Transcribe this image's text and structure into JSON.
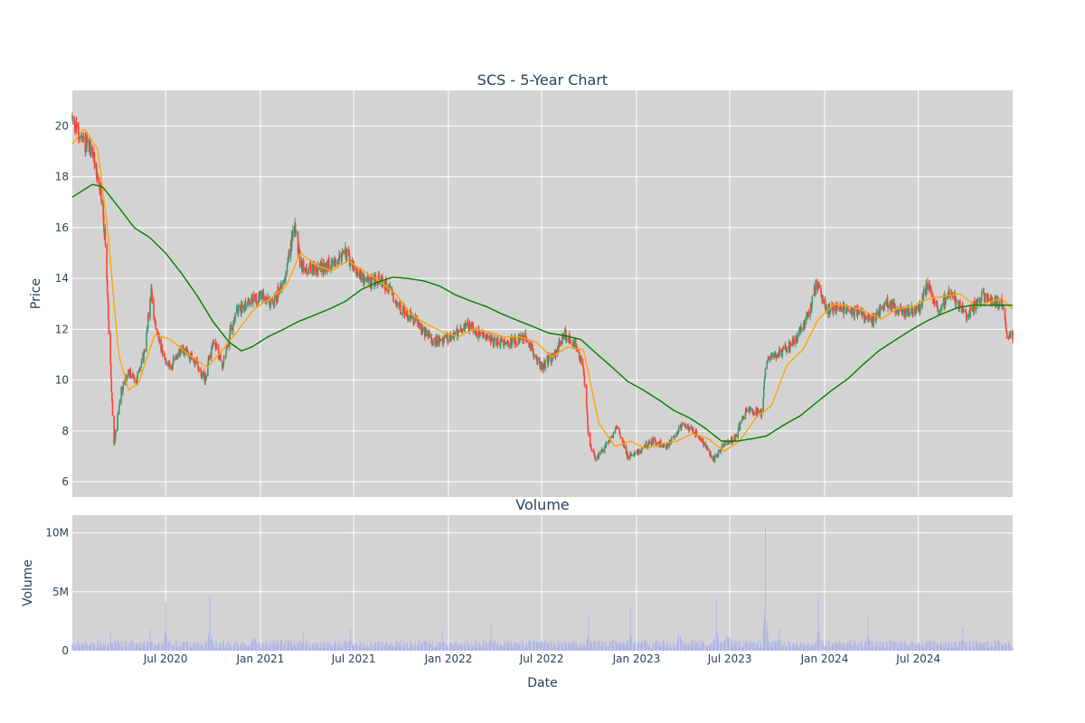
{
  "chart_data": [
    {
      "type": "candlestick",
      "title": "SCS - 5-Year Chart",
      "xlabel": "",
      "ylabel": "Price",
      "ylim": [
        5.4,
        21.4
      ],
      "xlim": [
        "2020-01-02",
        "2024-12-31"
      ],
      "grid": true,
      "yticks": [
        6,
        8,
        10,
        12,
        14,
        16,
        18,
        20
      ],
      "colors": {
        "up": "#3d9970",
        "down": "#ff4136",
        "ma_short": "#ffa500",
        "ma_long": "#008000",
        "plot_bg": "#d3d3d3",
        "grid": "#ffffff"
      },
      "price_path": [
        [
          "2020-01-02",
          20.3
        ],
        [
          "2020-01-20",
          19.4
        ],
        [
          "2020-02-10",
          19.0
        ],
        [
          "2020-02-25",
          17.5
        ],
        [
          "2020-03-05",
          15.8
        ],
        [
          "2020-03-12",
          12.5
        ],
        [
          "2020-03-18",
          9.5
        ],
        [
          "2020-03-23",
          7.5
        ],
        [
          "2020-04-05",
          9.5
        ],
        [
          "2020-04-20",
          10.3
        ],
        [
          "2020-05-05",
          10.0
        ],
        [
          "2020-05-20",
          11.0
        ],
        [
          "2020-06-03",
          13.5
        ],
        [
          "2020-06-12",
          12.0
        ],
        [
          "2020-06-25",
          11.0
        ],
        [
          "2020-07-10",
          10.5
        ],
        [
          "2020-08-01",
          11.2
        ],
        [
          "2020-08-25",
          10.8
        ],
        [
          "2020-09-15",
          10.0
        ],
        [
          "2020-10-01",
          11.6
        ],
        [
          "2020-10-20",
          10.6
        ],
        [
          "2020-11-10",
          12.5
        ],
        [
          "2020-12-01",
          13.0
        ],
        [
          "2021-01-01",
          13.3
        ],
        [
          "2021-01-25",
          13.0
        ],
        [
          "2021-02-20",
          14.2
        ],
        [
          "2021-03-08",
          16.2
        ],
        [
          "2021-03-20",
          14.5
        ],
        [
          "2021-04-15",
          14.3
        ],
        [
          "2021-05-10",
          14.5
        ],
        [
          "2021-06-15",
          15.0
        ],
        [
          "2021-07-01",
          14.5
        ],
        [
          "2021-07-25",
          13.8
        ],
        [
          "2021-08-20",
          14.0
        ],
        [
          "2021-09-10",
          13.5
        ],
        [
          "2021-10-01",
          12.8
        ],
        [
          "2021-11-01",
          12.3
        ],
        [
          "2021-12-01",
          11.5
        ],
        [
          "2022-01-10",
          11.7
        ],
        [
          "2022-02-01",
          12.2
        ],
        [
          "2022-03-01",
          11.8
        ],
        [
          "2022-04-01",
          11.5
        ],
        [
          "2022-05-01",
          11.5
        ],
        [
          "2022-06-01",
          11.7
        ],
        [
          "2022-07-01",
          10.5
        ],
        [
          "2022-07-25",
          11.0
        ],
        [
          "2022-08-15",
          11.8
        ],
        [
          "2022-09-01",
          11.5
        ],
        [
          "2022-09-20",
          10.5
        ],
        [
          "2022-10-01",
          7.5
        ],
        [
          "2022-10-15",
          6.9
        ],
        [
          "2022-11-05",
          7.5
        ],
        [
          "2022-11-25",
          8.2
        ],
        [
          "2022-12-15",
          7.0
        ],
        [
          "2023-01-05",
          7.2
        ],
        [
          "2023-02-01",
          7.6
        ],
        [
          "2023-03-01",
          7.4
        ],
        [
          "2023-04-01",
          8.3
        ],
        [
          "2023-05-01",
          7.8
        ],
        [
          "2023-06-01",
          6.9
        ],
        [
          "2023-06-20",
          7.5
        ],
        [
          "2023-07-10",
          7.7
        ],
        [
          "2023-08-01",
          8.8
        ],
        [
          "2023-09-01",
          8.7
        ],
        [
          "2023-09-10",
          10.8
        ],
        [
          "2023-10-01",
          11.0
        ],
        [
          "2023-11-01",
          11.5
        ],
        [
          "2023-12-01",
          12.5
        ],
        [
          "2023-12-15",
          13.8
        ],
        [
          "2024-01-05",
          12.8
        ],
        [
          "2024-02-01",
          12.8
        ],
        [
          "2024-03-01",
          12.7
        ],
        [
          "2024-04-01",
          12.3
        ],
        [
          "2024-05-01",
          13.0
        ],
        [
          "2024-06-01",
          12.7
        ],
        [
          "2024-07-01",
          12.8
        ],
        [
          "2024-07-20",
          13.8
        ],
        [
          "2024-08-10",
          12.8
        ],
        [
          "2024-09-01",
          13.5
        ],
        [
          "2024-10-01",
          12.5
        ],
        [
          "2024-11-01",
          13.3
        ],
        [
          "2024-12-10",
          13.0
        ],
        [
          "2024-12-20",
          11.8
        ],
        [
          "2024-12-31",
          11.7
        ]
      ],
      "series": [
        {
          "values": [
            [
              "2020-01-02",
              19.3
            ],
            [
              "2020-01-25",
              19.9
            ],
            [
              "2020-02-20",
              19.1
            ],
            [
              "2020-03-10",
              16.0
            ],
            [
              "2020-04-01",
              11.0
            ],
            [
              "2020-04-20",
              9.6
            ],
            [
              "2020-05-10",
              9.9
            ],
            [
              "2020-06-10",
              11.8
            ],
            [
              "2020-07-10",
              11.6
            ],
            [
              "2020-08-15",
              11.0
            ],
            [
              "2020-09-20",
              10.5
            ],
            [
              "2020-10-20",
              11.2
            ],
            [
              "2020-11-20",
              12.0
            ],
            [
              "2020-12-20",
              12.8
            ],
            [
              "2021-01-20",
              13.2
            ],
            [
              "2021-02-20",
              13.7
            ],
            [
              "2021-03-20",
              15.0
            ],
            [
              "2021-04-20",
              14.5
            ],
            [
              "2021-05-20",
              14.3
            ],
            [
              "2021-06-20",
              14.7
            ],
            [
              "2021-07-20",
              14.3
            ],
            [
              "2021-08-20",
              13.9
            ],
            [
              "2021-09-20",
              13.4
            ],
            [
              "2021-10-20",
              12.6
            ],
            [
              "2021-11-20",
              12.2
            ],
            [
              "2021-12-20",
              11.9
            ],
            [
              "2022-01-20",
              11.7
            ],
            [
              "2022-02-20",
              12.0
            ],
            [
              "2022-03-20",
              11.9
            ],
            [
              "2022-04-20",
              11.7
            ],
            [
              "2022-05-20",
              11.7
            ],
            [
              "2022-06-20",
              11.5
            ],
            [
              "2022-07-20",
              10.9
            ],
            [
              "2022-08-20",
              11.3
            ],
            [
              "2022-09-20",
              11.2
            ],
            [
              "2022-10-20",
              8.3
            ],
            [
              "2022-11-20",
              7.4
            ],
            [
              "2022-12-20",
              7.6
            ],
            [
              "2023-01-20",
              7.3
            ],
            [
              "2023-02-20",
              7.5
            ],
            [
              "2023-03-20",
              7.6
            ],
            [
              "2023-04-20",
              7.9
            ],
            [
              "2023-05-20",
              7.7
            ],
            [
              "2023-06-20",
              7.2
            ],
            [
              "2023-07-20",
              7.6
            ],
            [
              "2023-08-20",
              8.5
            ],
            [
              "2023-09-20",
              9.0
            ],
            [
              "2023-10-20",
              10.6
            ],
            [
              "2023-11-20",
              11.2
            ],
            [
              "2023-12-20",
              12.4
            ],
            [
              "2024-01-20",
              13.0
            ],
            [
              "2024-02-20",
              12.9
            ],
            [
              "2024-03-20",
              12.7
            ],
            [
              "2024-04-20",
              12.4
            ],
            [
              "2024-05-20",
              12.8
            ],
            [
              "2024-06-20",
              12.9
            ],
            [
              "2024-07-20",
              13.2
            ],
            [
              "2024-08-20",
              13.3
            ],
            [
              "2024-09-20",
              13.4
            ],
            [
              "2024-10-20",
              12.9
            ],
            [
              "2024-11-20",
              13.1
            ],
            [
              "2024-12-10",
              13.2
            ],
            [
              "2024-12-31",
              12.8
            ]
          ]
        },
        {
          "values": [
            [
              "2020-01-02",
              17.2
            ],
            [
              "2020-02-10",
              17.7
            ],
            [
              "2020-03-01",
              17.6
            ],
            [
              "2020-04-01",
              16.8
            ],
            [
              "2020-05-01",
              16.0
            ],
            [
              "2020-06-01",
              15.6
            ],
            [
              "2020-07-01",
              15.0
            ],
            [
              "2020-08-01",
              14.2
            ],
            [
              "2020-09-01",
              13.3
            ],
            [
              "2020-10-01",
              12.3
            ],
            [
              "2020-11-01",
              11.5
            ],
            [
              "2020-11-25",
              11.15
            ],
            [
              "2020-12-15",
              11.3
            ],
            [
              "2021-01-15",
              11.7
            ],
            [
              "2021-02-15",
              12.0
            ],
            [
              "2021-03-15",
              12.3
            ],
            [
              "2021-04-15",
              12.55
            ],
            [
              "2021-05-15",
              12.8
            ],
            [
              "2021-06-15",
              13.1
            ],
            [
              "2021-07-15",
              13.55
            ],
            [
              "2021-08-15",
              13.85
            ],
            [
              "2021-09-15",
              14.05
            ],
            [
              "2021-10-15",
              14.0
            ],
            [
              "2021-11-15",
              13.9
            ],
            [
              "2021-12-15",
              13.7
            ],
            [
              "2022-01-15",
              13.35
            ],
            [
              "2022-02-15",
              13.1
            ],
            [
              "2022-03-15",
              12.9
            ],
            [
              "2022-04-15",
              12.6
            ],
            [
              "2022-05-15",
              12.35
            ],
            [
              "2022-06-15",
              12.1
            ],
            [
              "2022-07-15",
              11.85
            ],
            [
              "2022-08-15",
              11.75
            ],
            [
              "2022-09-15",
              11.6
            ],
            [
              "2022-10-15",
              11.05
            ],
            [
              "2022-11-15",
              10.5
            ],
            [
              "2022-12-15",
              9.95
            ],
            [
              "2023-01-15",
              9.6
            ],
            [
              "2023-02-15",
              9.2
            ],
            [
              "2023-03-15",
              8.8
            ],
            [
              "2023-04-15",
              8.5
            ],
            [
              "2023-05-15",
              8.1
            ],
            [
              "2023-06-15",
              7.6
            ],
            [
              "2023-07-15",
              7.6
            ],
            [
              "2023-08-15",
              7.7
            ],
            [
              "2023-09-10",
              7.8
            ],
            [
              "2023-10-15",
              8.25
            ],
            [
              "2023-11-15",
              8.6
            ],
            [
              "2023-12-15",
              9.1
            ],
            [
              "2024-01-15",
              9.6
            ],
            [
              "2024-02-15",
              10.05
            ],
            [
              "2024-03-15",
              10.6
            ],
            [
              "2024-04-15",
              11.15
            ],
            [
              "2024-05-15",
              11.55
            ],
            [
              "2024-06-15",
              11.95
            ],
            [
              "2024-07-15",
              12.3
            ],
            [
              "2024-08-15",
              12.6
            ],
            [
              "2024-09-15",
              12.85
            ],
            [
              "2024-10-15",
              12.95
            ],
            [
              "2024-11-15",
              12.95
            ],
            [
              "2024-12-31",
              12.95
            ]
          ]
        }
      ]
    },
    {
      "type": "bar",
      "title": "Volume",
      "xlabel": "Date",
      "ylabel": "Volume",
      "ylim": [
        0,
        11500000
      ],
      "xlim": [
        "2020-01-02",
        "2024-12-31"
      ],
      "grid": true,
      "yticks": [
        0,
        5000000,
        10000000
      ],
      "ytick_labels": [
        "0",
        "5M",
        "10M"
      ],
      "xticks": [
        "2020-07-01",
        "2021-01-01",
        "2021-07-01",
        "2022-01-01",
        "2022-07-01",
        "2023-01-01",
        "2023-07-01",
        "2024-01-01",
        "2024-07-01"
      ],
      "xtick_labels": [
        "Jul 2020",
        "Jan 2021",
        "Jul 2021",
        "Jan 2022",
        "Jul 2022",
        "Jan 2023",
        "Jul 2023",
        "Jan 2024",
        "Jul 2024"
      ],
      "base_volume": 600000,
      "spikes": [
        [
          "2020-03-16",
          1600000
        ],
        [
          "2020-06-01",
          1800000
        ],
        [
          "2020-07-01",
          4200000
        ],
        [
          "2020-09-25",
          4700000
        ],
        [
          "2020-12-20",
          2800000
        ],
        [
          "2021-03-25",
          1500000
        ],
        [
          "2021-06-25",
          1800000
        ],
        [
          "2021-09-25",
          1600000
        ],
        [
          "2021-12-20",
          1700000
        ],
        [
          "2022-03-25",
          2400000
        ],
        [
          "2022-06-25",
          1500000
        ],
        [
          "2022-09-30",
          3100000
        ],
        [
          "2022-12-20",
          3600000
        ],
        [
          "2023-03-25",
          3800000
        ],
        [
          "2023-06-05",
          4300000
        ],
        [
          "2023-06-25",
          3300000
        ],
        [
          "2023-07-01",
          2900000
        ],
        [
          "2023-09-08",
          10600000
        ],
        [
          "2023-10-05",
          1900000
        ],
        [
          "2023-12-20",
          4600000
        ],
        [
          "2024-03-25",
          2900000
        ],
        [
          "2024-07-20",
          1800000
        ],
        [
          "2024-09-25",
          1900000
        ]
      ],
      "color": "#b0b6e6"
    }
  ]
}
